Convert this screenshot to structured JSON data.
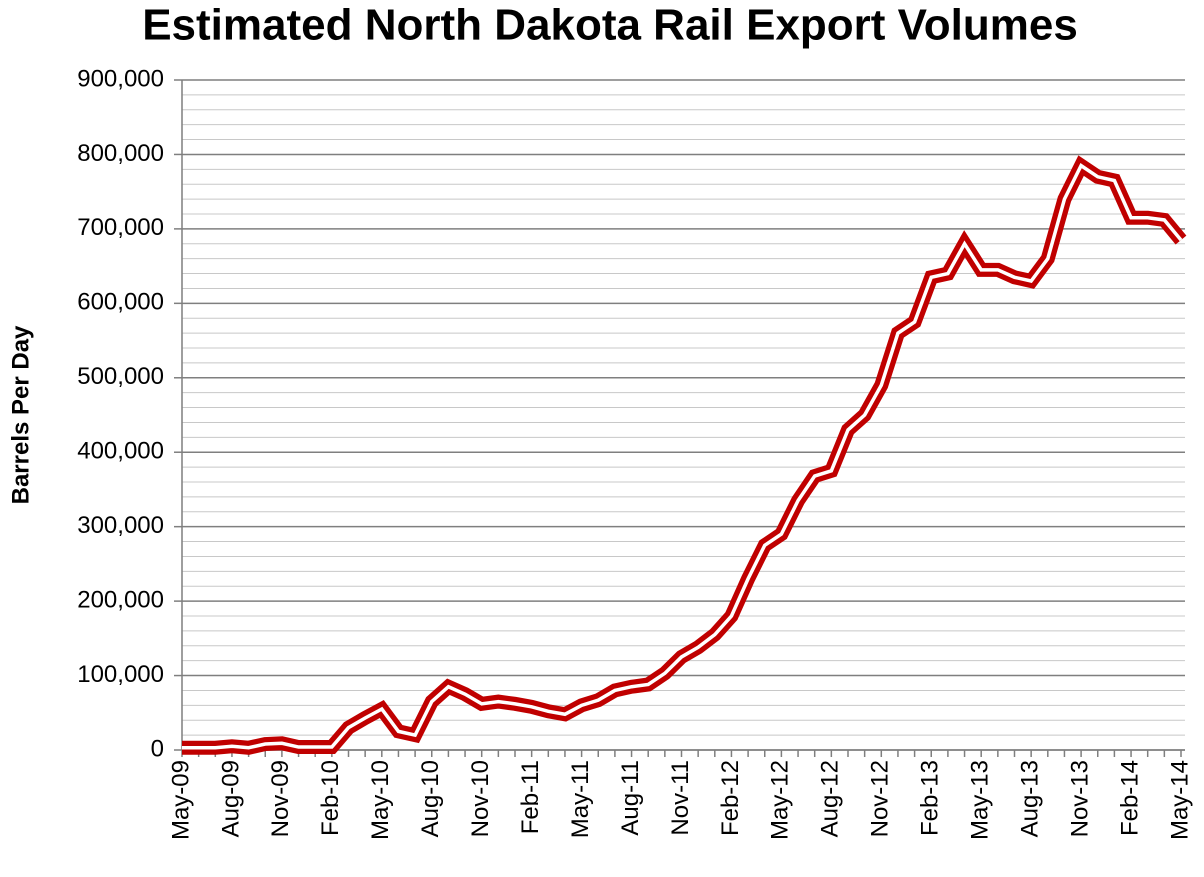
{
  "chart_data": {
    "type": "line",
    "title": "Estimated North Dakota Rail Export Volumes",
    "y_label": "Barrels Per Day",
    "categories": [
      "May-09",
      null,
      null,
      "Aug-09",
      null,
      null,
      "Nov-09",
      null,
      null,
      "Feb-10",
      null,
      null,
      "May-10",
      null,
      null,
      "Aug-10",
      null,
      null,
      "Nov-10",
      null,
      null,
      "Feb-11",
      null,
      null,
      "May-11",
      null,
      null,
      "Aug-11",
      null,
      null,
      "Nov-11",
      null,
      null,
      "Feb-12",
      null,
      null,
      "May-12",
      null,
      null,
      "Aug-12",
      null,
      null,
      "Nov-12",
      null,
      null,
      "Feb-13",
      null,
      null,
      "May-13",
      null,
      null,
      "Aug-13",
      null,
      null,
      "Nov-13",
      null,
      null,
      "Feb-14",
      null,
      null,
      "May-14"
    ],
    "series": [
      {
        "name": "Barrels Per Day",
        "color": "#c00000",
        "values": [
          3000,
          3000,
          3000,
          5000,
          3000,
          8000,
          9000,
          4000,
          4000,
          4000,
          30000,
          43000,
          55000,
          25000,
          20000,
          65000,
          85000,
          75000,
          62000,
          65000,
          62000,
          58000,
          52000,
          48000,
          60000,
          67000,
          80000,
          85000,
          88000,
          103000,
          125000,
          138000,
          155000,
          180000,
          230000,
          275000,
          290000,
          335000,
          368000,
          375000,
          430000,
          450000,
          490000,
          560000,
          575000,
          635000,
          640000,
          680000,
          645000,
          645000,
          635000,
          630000,
          660000,
          740000,
          785000,
          770000,
          765000,
          715000,
          715000,
          712000,
          685000
        ]
      }
    ],
    "ylim": [
      0,
      900000
    ],
    "yticks": [
      {
        "value": 0,
        "label": "0"
      },
      {
        "value": 100000,
        "label": "100,000"
      },
      {
        "value": 200000,
        "label": "200,000"
      },
      {
        "value": 300000,
        "label": "300,000"
      },
      {
        "value": 400000,
        "label": "400,000"
      },
      {
        "value": 500000,
        "label": "500,000"
      },
      {
        "value": 600000,
        "label": "600,000"
      },
      {
        "value": 700000,
        "label": "700,000"
      },
      {
        "value": 800000,
        "label": "800,000"
      },
      {
        "value": 900000,
        "label": "900,000"
      }
    ],
    "y_minor_ticks": [
      20000,
      40000,
      60000,
      80000,
      120000,
      140000,
      160000,
      180000,
      220000,
      240000,
      260000,
      280000,
      320000,
      340000,
      360000,
      380000,
      420000,
      440000,
      460000,
      480000,
      520000,
      540000,
      560000,
      580000,
      620000,
      640000,
      660000,
      680000,
      720000,
      740000,
      760000,
      780000,
      820000,
      840000,
      860000,
      880000
    ],
    "grid": true
  }
}
